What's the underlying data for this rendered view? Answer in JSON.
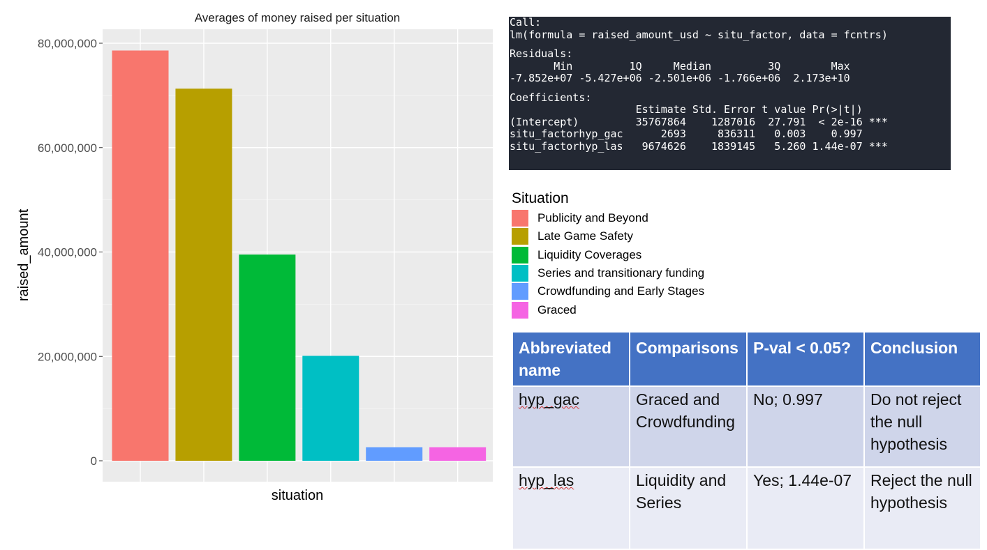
{
  "chart_data": {
    "type": "bar",
    "title": "Averages of money raised per situation",
    "xlabel": "situation",
    "ylabel": "raised_amount",
    "ylim": [
      0,
      85000000
    ],
    "yticks": [
      0,
      20000000,
      40000000,
      60000000,
      80000000
    ],
    "ytick_labels": [
      "0",
      "20,000,000",
      "40,000,000",
      "60,000,000",
      "80,000,000"
    ],
    "grid": true,
    "legend_position": "right",
    "categories": [
      "Publicity and Beyond",
      "Late Game Safety",
      "Liquidity Coverages",
      "Series and transitionary funding",
      "Crowdfunding and Early Stages",
      "Graced"
    ],
    "values": [
      78600000,
      71300000,
      39500000,
      20100000,
      2600000,
      2600000
    ],
    "colors": [
      "#f8766d",
      "#b79f00",
      "#00ba38",
      "#00bfc4",
      "#619cff",
      "#f564e3"
    ]
  },
  "console": {
    "lines": [
      "Call:",
      "lm(formula = raised_amount_usd ~ situ_factor, data = fcntrs)",
      "",
      "Residuals:",
      "       Min         1Q     Median         3Q        Max ",
      "-7.852e+07 -5.427e+06 -2.501e+06 -1.766e+06  2.173e+10 ",
      "",
      "Coefficients:",
      "                    Estimate Std. Error t value Pr(>|t|)    ",
      "(Intercept)         35767864    1287016  27.791  < 2e-16 ***",
      "situ_factorhyp_gac      2693     836311   0.003    0.997    ",
      "situ_factorhyp_las   9674626    1839145   5.260 1.44e-07 ***"
    ]
  },
  "legend": {
    "title": "Situation",
    "items": [
      {
        "label": "Publicity and Beyond",
        "color": "#f8766d"
      },
      {
        "label": "Late Game Safety",
        "color": "#b79f00"
      },
      {
        "label": "Liquidity Coverages",
        "color": "#00ba38"
      },
      {
        "label": "Series and transitionary funding",
        "color": "#00bfc4"
      },
      {
        "label": "Crowdfunding and Early Stages",
        "color": "#619cff"
      },
      {
        "label": "Graced",
        "color": "#f564e3"
      }
    ]
  },
  "table": {
    "headers": [
      "Abbreviated name",
      "Comparisons",
      "P-val < 0.05?",
      "Conclusion"
    ],
    "rows": [
      [
        "hyp_gac",
        "Graced and Crowdfunding",
        "No; 0.997",
        "Do not reject the null hypothesis"
      ],
      [
        "hyp_las",
        "Liquidity and Series",
        "Yes; 1.44e-07",
        "Reject the null hypothesis"
      ]
    ]
  }
}
